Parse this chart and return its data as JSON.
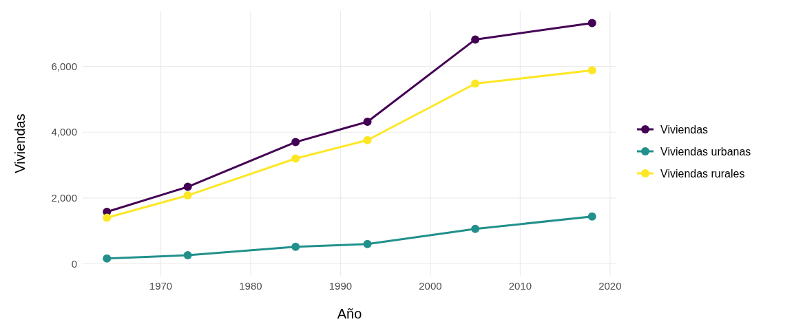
{
  "chart_data": {
    "type": "line",
    "xlabel": "Año",
    "ylabel": "Viviendas",
    "x": [
      1964,
      1973,
      1985,
      1993,
      2005,
      2018
    ],
    "series": [
      {
        "name": "Viviendas",
        "color": "#440154",
        "values": [
          1580,
          2340,
          3700,
          4320,
          6820,
          7320
        ]
      },
      {
        "name": "Viviendas urbanas",
        "color": "#21908c",
        "values": [
          160,
          260,
          520,
          600,
          1060,
          1440
        ]
      },
      {
        "name": "Viviendas rurales",
        "color": "#fde725",
        "values": [
          1400,
          2080,
          3200,
          3760,
          5480,
          5880
        ]
      }
    ],
    "xlim": [
      1961.3,
      2020.7
    ],
    "xticks": [
      1970,
      1980,
      1990,
      2000,
      2010,
      2020
    ],
    "ylim": [
      -366,
      7686
    ],
    "yticks": [
      {
        "value": 0,
        "label": "0"
      },
      {
        "value": 2000,
        "label": "2,000"
      },
      {
        "value": 4000,
        "label": "4,000"
      },
      {
        "value": 6000,
        "label": "6,000"
      }
    ],
    "grid": true,
    "legend": "right",
    "marker": "circle",
    "line_style": "solid"
  }
}
